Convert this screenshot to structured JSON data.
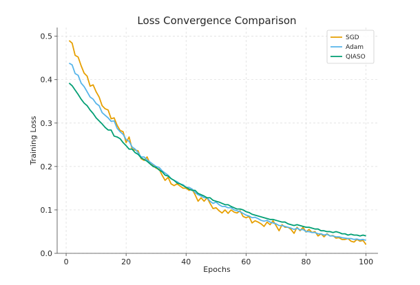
{
  "chart_data": {
    "type": "line",
    "title": "Loss Convergence Comparison",
    "xlabel": "Epochs",
    "ylabel": "Training Loss",
    "xlim": [
      -3,
      104
    ],
    "ylim": [
      0,
      0.52
    ],
    "xticks": [
      0,
      20,
      40,
      60,
      80,
      100
    ],
    "yticks": [
      0.0,
      0.1,
      0.2,
      0.3,
      0.4,
      0.5
    ],
    "xtick_labels": [
      "0",
      "20",
      "40",
      "60",
      "80",
      "100"
    ],
    "ytick_labels": [
      "0.0",
      "0.1",
      "0.2",
      "0.3",
      "0.4",
      "0.5"
    ],
    "grid": true,
    "legend_position": "top-right",
    "series": [
      {
        "name": "SGD",
        "color": "#E69F00",
        "x": [
          1,
          2,
          3,
          4,
          5,
          6,
          7,
          8,
          9,
          10,
          11,
          12,
          13,
          14,
          15,
          16,
          17,
          18,
          19,
          20,
          21,
          22,
          23,
          24,
          25,
          26,
          27,
          28,
          29,
          30,
          31,
          32,
          33,
          34,
          35,
          36,
          37,
          38,
          39,
          40,
          41,
          42,
          43,
          44,
          45,
          46,
          47,
          48,
          49,
          50,
          51,
          52,
          53,
          54,
          55,
          56,
          57,
          58,
          59,
          60,
          61,
          62,
          63,
          64,
          65,
          66,
          67,
          68,
          69,
          70,
          71,
          72,
          73,
          74,
          75,
          76,
          77,
          78,
          79,
          80,
          81,
          82,
          83,
          84,
          85,
          86,
          87,
          88,
          89,
          90,
          91,
          92,
          93,
          94,
          95,
          96,
          97,
          98,
          99,
          100
        ],
        "values": [
          0.49,
          0.484,
          0.456,
          0.452,
          0.432,
          0.415,
          0.408,
          0.385,
          0.388,
          0.372,
          0.36,
          0.34,
          0.333,
          0.33,
          0.31,
          0.312,
          0.295,
          0.283,
          0.28,
          0.255,
          0.268,
          0.24,
          0.238,
          0.236,
          0.218,
          0.214,
          0.222,
          0.206,
          0.202,
          0.196,
          0.194,
          0.18,
          0.168,
          0.175,
          0.16,
          0.156,
          0.16,
          0.155,
          0.15,
          0.15,
          0.145,
          0.148,
          0.135,
          0.12,
          0.128,
          0.12,
          0.128,
          0.115,
          0.103,
          0.105,
          0.098,
          0.093,
          0.1,
          0.092,
          0.1,
          0.095,
          0.093,
          0.098,
          0.085,
          0.082,
          0.085,
          0.07,
          0.075,
          0.072,
          0.068,
          0.062,
          0.072,
          0.066,
          0.075,
          0.064,
          0.052,
          0.066,
          0.06,
          0.06,
          0.055,
          0.046,
          0.06,
          0.052,
          0.06,
          0.049,
          0.055,
          0.048,
          0.05,
          0.04,
          0.045,
          0.038,
          0.045,
          0.04,
          0.041,
          0.035,
          0.036,
          0.032,
          0.032,
          0.034,
          0.028,
          0.026,
          0.032,
          0.028,
          0.03,
          0.02
        ]
      },
      {
        "name": "Adam",
        "color": "#56B4E9",
        "x": [
          1,
          2,
          3,
          4,
          5,
          6,
          7,
          8,
          9,
          10,
          11,
          12,
          13,
          14,
          15,
          16,
          17,
          18,
          19,
          20,
          21,
          22,
          23,
          24,
          25,
          26,
          27,
          28,
          29,
          30,
          31,
          32,
          33,
          34,
          35,
          36,
          37,
          38,
          39,
          40,
          41,
          42,
          43,
          44,
          45,
          46,
          47,
          48,
          49,
          50,
          51,
          52,
          53,
          54,
          55,
          56,
          57,
          58,
          59,
          60,
          61,
          62,
          63,
          64,
          65,
          66,
          67,
          68,
          69,
          70,
          71,
          72,
          73,
          74,
          75,
          76,
          77,
          78,
          79,
          80,
          81,
          82,
          83,
          84,
          85,
          86,
          87,
          88,
          89,
          90,
          91,
          92,
          93,
          94,
          95,
          96,
          97,
          98,
          99,
          100
        ],
        "values": [
          0.438,
          0.434,
          0.414,
          0.41,
          0.392,
          0.384,
          0.372,
          0.36,
          0.355,
          0.345,
          0.34,
          0.324,
          0.318,
          0.312,
          0.304,
          0.305,
          0.288,
          0.28,
          0.274,
          0.262,
          0.258,
          0.245,
          0.24,
          0.232,
          0.222,
          0.222,
          0.215,
          0.21,
          0.205,
          0.2,
          0.198,
          0.19,
          0.185,
          0.18,
          0.172,
          0.168,
          0.165,
          0.16,
          0.158,
          0.152,
          0.152,
          0.148,
          0.14,
          0.135,
          0.132,
          0.128,
          0.128,
          0.12,
          0.115,
          0.118,
          0.112,
          0.108,
          0.108,
          0.105,
          0.105,
          0.1,
          0.098,
          0.096,
          0.092,
          0.088,
          0.086,
          0.082,
          0.083,
          0.08,
          0.076,
          0.074,
          0.076,
          0.072,
          0.07,
          0.068,
          0.064,
          0.064,
          0.062,
          0.06,
          0.058,
          0.055,
          0.058,
          0.054,
          0.055,
          0.05,
          0.05,
          0.048,
          0.048,
          0.045,
          0.045,
          0.042,
          0.044,
          0.04,
          0.04,
          0.038,
          0.038,
          0.036,
          0.035,
          0.034,
          0.034,
          0.032,
          0.033,
          0.031,
          0.032,
          0.03
        ]
      },
      {
        "name": "QIASO",
        "color": "#009E73",
        "x": [
          1,
          2,
          3,
          4,
          5,
          6,
          7,
          8,
          9,
          10,
          11,
          12,
          13,
          14,
          15,
          16,
          17,
          18,
          19,
          20,
          21,
          22,
          23,
          24,
          25,
          26,
          27,
          28,
          29,
          30,
          31,
          32,
          33,
          34,
          35,
          36,
          37,
          38,
          39,
          40,
          41,
          42,
          43,
          44,
          45,
          46,
          47,
          48,
          49,
          50,
          51,
          52,
          53,
          54,
          55,
          56,
          57,
          58,
          59,
          60,
          61,
          62,
          63,
          64,
          65,
          66,
          67,
          68,
          69,
          70,
          71,
          72,
          73,
          74,
          75,
          76,
          77,
          78,
          79,
          80,
          81,
          82,
          83,
          84,
          85,
          86,
          87,
          88,
          89,
          90,
          91,
          92,
          93,
          94,
          95,
          96,
          97,
          98,
          99,
          100
        ],
        "values": [
          0.392,
          0.386,
          0.376,
          0.366,
          0.355,
          0.346,
          0.34,
          0.33,
          0.322,
          0.312,
          0.305,
          0.298,
          0.29,
          0.284,
          0.284,
          0.27,
          0.268,
          0.264,
          0.255,
          0.248,
          0.24,
          0.24,
          0.232,
          0.228,
          0.22,
          0.216,
          0.212,
          0.206,
          0.2,
          0.198,
          0.192,
          0.188,
          0.18,
          0.178,
          0.172,
          0.168,
          0.162,
          0.16,
          0.156,
          0.152,
          0.148,
          0.145,
          0.145,
          0.138,
          0.135,
          0.132,
          0.128,
          0.128,
          0.122,
          0.12,
          0.118,
          0.115,
          0.112,
          0.112,
          0.108,
          0.105,
          0.102,
          0.102,
          0.1,
          0.096,
          0.094,
          0.09,
          0.088,
          0.086,
          0.084,
          0.082,
          0.08,
          0.078,
          0.078,
          0.076,
          0.074,
          0.072,
          0.072,
          0.068,
          0.066,
          0.064,
          0.066,
          0.064,
          0.062,
          0.06,
          0.06,
          0.058,
          0.056,
          0.056,
          0.052,
          0.052,
          0.05,
          0.05,
          0.048,
          0.05,
          0.048,
          0.045,
          0.045,
          0.042,
          0.044,
          0.042,
          0.042,
          0.04,
          0.042,
          0.04
        ]
      }
    ]
  }
}
